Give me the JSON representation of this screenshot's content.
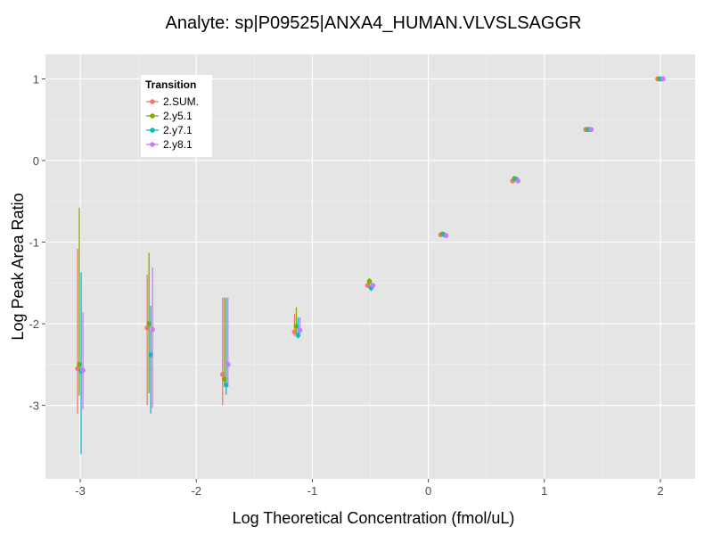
{
  "chart_data": {
    "type": "scatter",
    "title": "Analyte: sp|P09525|ANXA4_HUMAN.VLVSLSAGGR",
    "xlabel": "Log Theoretical Concentration (fmol/uL)",
    "ylabel": "Log Peak Area Ratio",
    "xlim": [
      -3.3,
      2.3
    ],
    "ylim": [
      -3.9,
      1.3
    ],
    "xticks": [
      -3,
      -2,
      -1,
      0,
      1,
      2
    ],
    "yticks": [
      -3,
      -2,
      -1,
      0,
      1
    ],
    "grid": true,
    "error_bars": true,
    "legend": {
      "title": "Transition",
      "placement": "top-left-inside"
    },
    "x": [
      -3.0,
      -2.4,
      -1.75,
      -1.13,
      -0.5,
      0.13,
      0.75,
      1.38,
      2.0
    ],
    "series": [
      {
        "name": "2.SUM.",
        "color": "#F8766D",
        "y": [
          -2.55,
          -2.05,
          -2.62,
          -2.1,
          -1.53,
          -0.91,
          -0.25,
          0.38,
          1.0
        ],
        "err_low": [
          -3.1,
          -3.0,
          -3.0,
          -2.15,
          -1.56,
          -0.93,
          -0.27,
          0.37,
          0.99
        ],
        "err_high": [
          -1.08,
          -1.4,
          -1.68,
          -1.88,
          -1.5,
          -0.89,
          -0.23,
          0.39,
          1.01
        ]
      },
      {
        "name": "2.y5.1",
        "color": "#7CAE00",
        "y": [
          -2.5,
          -2.0,
          -2.68,
          -2.03,
          -1.48,
          -0.9,
          -0.22,
          0.38,
          1.0
        ],
        "err_low": [
          -2.88,
          -2.85,
          -2.74,
          -2.12,
          -1.52,
          -0.92,
          -0.24,
          0.37,
          0.99
        ],
        "err_high": [
          -0.58,
          -1.13,
          -1.68,
          -1.8,
          -1.44,
          -0.88,
          -0.2,
          0.39,
          1.01
        ]
      },
      {
        "name": "2.y7.1",
        "color": "#00BFC4",
        "y": [
          -2.58,
          -2.38,
          -2.75,
          -2.14,
          -1.56,
          -0.91,
          -0.23,
          0.38,
          1.0
        ],
        "err_low": [
          -3.6,
          -3.1,
          -2.87,
          -2.18,
          -1.6,
          -0.93,
          -0.25,
          0.37,
          0.99
        ],
        "err_high": [
          -1.37,
          -1.78,
          -1.68,
          -1.92,
          -1.5,
          -0.89,
          -0.21,
          0.39,
          1.01
        ]
      },
      {
        "name": "2.y8.1",
        "color": "#C77CFF",
        "y": [
          -2.57,
          -2.07,
          -2.5,
          -2.08,
          -1.53,
          -0.92,
          -0.25,
          0.38,
          1.0
        ],
        "err_low": [
          -3.05,
          -3.03,
          -2.74,
          -2.14,
          -1.58,
          -0.94,
          -0.27,
          0.37,
          0.99
        ],
        "err_high": [
          -1.86,
          -1.31,
          -1.68,
          -1.92,
          -1.5,
          -0.9,
          -0.23,
          0.39,
          1.01
        ]
      }
    ]
  }
}
